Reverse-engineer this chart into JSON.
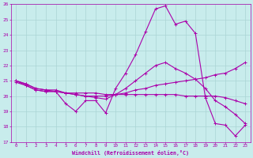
{
  "xlabel": "Windchill (Refroidissement éolien,°C)",
  "background_color": "#c8ecec",
  "grid_color": "#aad4d4",
  "line_color": "#aa00aa",
  "xlim": [
    -0.5,
    23.5
  ],
  "ylim": [
    17,
    26
  ],
  "yticks": [
    17,
    18,
    19,
    20,
    21,
    22,
    23,
    24,
    25,
    26
  ],
  "xticks": [
    0,
    1,
    2,
    3,
    4,
    5,
    6,
    7,
    8,
    9,
    10,
    11,
    12,
    13,
    14,
    15,
    16,
    17,
    18,
    19,
    20,
    21,
    22,
    23
  ],
  "series1_x": [
    0,
    1,
    2,
    3,
    4,
    5,
    6,
    7,
    8,
    9,
    10,
    11,
    12,
    13,
    14,
    15,
    16,
    17,
    18,
    19,
    20,
    21,
    22,
    23
  ],
  "series1_y": [
    20.9,
    20.7,
    20.4,
    20.3,
    20.3,
    19.5,
    19.0,
    19.7,
    19.7,
    18.9,
    20.5,
    21.5,
    22.7,
    24.2,
    25.7,
    25.9,
    24.7,
    24.9,
    24.1,
    19.9,
    18.2,
    18.1,
    17.4,
    18.1
  ],
  "series2_x": [
    0,
    1,
    2,
    3,
    4,
    5,
    6,
    7,
    8,
    9,
    10,
    11,
    12,
    13,
    14,
    15,
    16,
    17,
    18,
    19,
    20,
    21,
    22,
    23
  ],
  "series2_y": [
    21.0,
    20.7,
    20.4,
    20.3,
    20.3,
    20.2,
    20.1,
    20.0,
    20.0,
    20.0,
    20.1,
    20.2,
    20.4,
    20.5,
    20.7,
    20.8,
    20.9,
    21.0,
    21.1,
    21.2,
    21.4,
    21.5,
    21.8,
    22.2
  ],
  "series3_x": [
    0,
    1,
    2,
    3,
    4,
    5,
    6,
    7,
    8,
    9,
    10,
    11,
    12,
    13,
    14,
    15,
    16,
    17,
    18,
    19,
    20,
    21,
    22,
    23
  ],
  "series3_y": [
    21.0,
    20.8,
    20.5,
    20.4,
    20.3,
    20.2,
    20.2,
    20.2,
    20.2,
    20.1,
    20.1,
    20.1,
    20.1,
    20.1,
    20.1,
    20.1,
    20.1,
    20.0,
    20.0,
    20.0,
    20.0,
    19.9,
    19.7,
    19.5
  ],
  "series4_x": [
    0,
    1,
    2,
    3,
    4,
    5,
    6,
    7,
    8,
    9,
    10,
    11,
    12,
    13,
    14,
    15,
    16,
    17,
    18,
    19,
    20,
    21,
    22,
    23
  ],
  "series4_y": [
    21.0,
    20.8,
    20.5,
    20.4,
    20.4,
    20.2,
    20.1,
    20.0,
    19.9,
    19.8,
    20.1,
    20.5,
    21.0,
    21.5,
    22.0,
    22.2,
    21.8,
    21.5,
    21.1,
    20.5,
    19.7,
    19.3,
    18.8,
    18.2
  ]
}
